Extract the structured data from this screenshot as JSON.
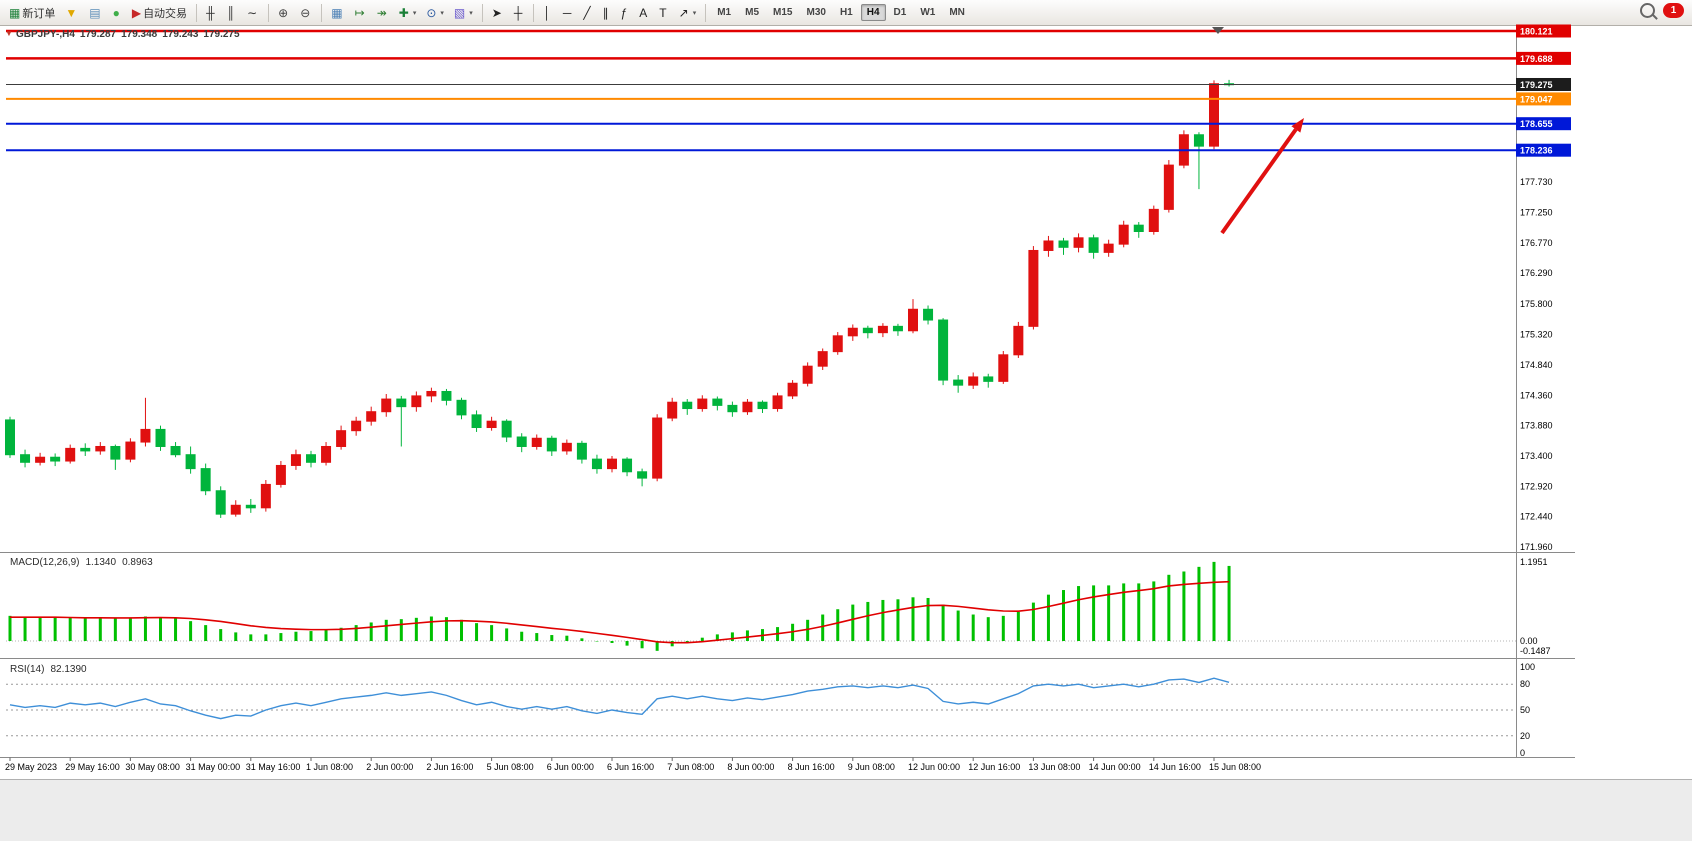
{
  "toolbar": {
    "items": [
      {
        "name": "new-order-button",
        "glyph": "▦",
        "color": "#1a7f37",
        "label": "新订单"
      },
      {
        "name": "metaeditor-icon-button",
        "glyph": "▼",
        "color": "#e0a800"
      },
      {
        "name": "print-icon-button",
        "glyph": "▤",
        "color": "#5b8db8"
      },
      {
        "name": "community-icon-button",
        "glyph": "●",
        "color": "#3fae49"
      },
      {
        "name": "autotrading-button",
        "glyph": "▶",
        "color": "#c62828",
        "label": "自动交易"
      },
      {
        "sep": true
      },
      {
        "name": "bar-chart-button",
        "glyph": "╫",
        "color": "#333333"
      },
      {
        "name": "candlestick-chart-button",
        "glyph": "║",
        "color": "#333333"
      },
      {
        "name": "line-chart-button",
        "glyph": "∼",
        "color": "#333333"
      },
      {
        "sep": true
      },
      {
        "name": "zoom-in-button",
        "glyph": "⊕",
        "color": "#444444"
      },
      {
        "name": "zoom-out-button",
        "glyph": "⊖",
        "color": "#444444"
      },
      {
        "sep": true
      },
      {
        "name": "tile-windows-button",
        "glyph": "▦",
        "color": "#4a7fb5"
      },
      {
        "name": "auto-scroll-button",
        "glyph": "↦",
        "color": "#2e7d32"
      },
      {
        "name": "chart-shift-button",
        "glyph": "↠",
        "color": "#2e7d32"
      },
      {
        "name": "indicators-button",
        "glyph": "✚",
        "color": "#1a7f37",
        "dd": true
      },
      {
        "name": "periods-button",
        "glyph": "⊙",
        "color": "#2c5aa0",
        "dd": true
      },
      {
        "name": "templates-button",
        "glyph": "▧",
        "color": "#6a5acd",
        "dd": true
      },
      {
        "sep": true
      },
      {
        "name": "cursor-button",
        "glyph": "➤",
        "color": "#222222"
      },
      {
        "name": "crosshair-button",
        "glyph": "┼",
        "color": "#222222"
      },
      {
        "sep": true
      },
      {
        "name": "vertical-line-button",
        "glyph": "│",
        "color": "#222222"
      },
      {
        "name": "horizontal-line-button",
        "glyph": "─",
        "color": "#222222"
      },
      {
        "name": "trendline-button",
        "glyph": "╱",
        "color": "#222222"
      },
      {
        "name": "channel-button",
        "glyph": "∥",
        "color": "#222222"
      },
      {
        "name": "fibonacci-button",
        "glyph": "ƒ",
        "color": "#222222"
      },
      {
        "name": "text-button",
        "glyph": "A",
        "color": "#222222"
      },
      {
        "name": "label-button",
        "glyph": "T",
        "color": "#222222"
      },
      {
        "name": "arrows-button",
        "glyph": "↗",
        "color": "#222222",
        "dd": true
      },
      {
        "sep": true
      }
    ],
    "timeframes": [
      {
        "label": "M1"
      },
      {
        "label": "M5"
      },
      {
        "label": "M15"
      },
      {
        "label": "M30"
      },
      {
        "label": "H1"
      },
      {
        "label": "H4",
        "active": true
      },
      {
        "label": "D1"
      },
      {
        "label": "W1"
      },
      {
        "label": "MN"
      }
    ],
    "notification_count": "1"
  },
  "chart": {
    "symbol_period": "GBPJPY-,H4",
    "open": "179.287",
    "high": "179.348",
    "low": "179.243",
    "close": "179.275"
  },
  "chart_data": {
    "type": "candlestick",
    "title": "GBPJPY- H4",
    "up_color": "#e01010",
    "down_color": "#00b43c",
    "x_labels": [
      "29 May 2023",
      "29 May 16:00",
      "30 May 08:00",
      "31 May 00:00",
      "31 May 16:00",
      "1 Jun 08:00",
      "2 Jun 00:00",
      "2 Jun 16:00",
      "5 Jun 08:00",
      "6 Jun 00:00",
      "6 Jun 16:00",
      "7 Jun 08:00",
      "8 Jun 00:00",
      "8 Jun 16:00",
      "9 Jun 08:00",
      "12 Jun 00:00",
      "12 Jun 16:00",
      "13 Jun 08:00",
      "14 Jun 00:00",
      "14 Jun 16:00",
      "15 Jun 08:00"
    ],
    "label_step": 4,
    "y_ticks": [
      "177.730",
      "177.250",
      "176.770",
      "176.290",
      "175.800",
      "175.320",
      "174.840",
      "174.360",
      "173.880",
      "173.400",
      "172.920",
      "172.440",
      "171.960"
    ],
    "price_lines": [
      {
        "label": "180.121",
        "price": 180.121,
        "color": "#e00000",
        "width": 2.5,
        "badge": "#e00000"
      },
      {
        "label": "179.688",
        "price": 179.688,
        "color": "#e00000",
        "width": 2.5,
        "badge": "#e00000"
      },
      {
        "label": "179.275",
        "price": 179.275,
        "color": "#3c3c3c",
        "width": 1,
        "badge": "#1c1c1c"
      },
      {
        "label": "179.047",
        "price": 179.047,
        "color": "#ff8a00",
        "width": 2,
        "badge": "#ff8a00"
      },
      {
        "label": "178.655",
        "price": 178.655,
        "color": "#0018d8",
        "width": 2,
        "badge": "#0018d8"
      },
      {
        "label": "178.236",
        "price": 178.236,
        "color": "#0018d8",
        "width": 2,
        "badge": "#0018d8"
      }
    ],
    "candles": [
      [
        173.97,
        174.02,
        173.37,
        173.42
      ],
      [
        173.42,
        173.5,
        173.22,
        173.3
      ],
      [
        173.3,
        173.45,
        173.25,
        173.38
      ],
      [
        173.38,
        173.44,
        173.24,
        173.32
      ],
      [
        173.32,
        173.58,
        173.28,
        173.52
      ],
      [
        173.52,
        173.6,
        173.4,
        173.48
      ],
      [
        173.48,
        173.62,
        173.42,
        173.55
      ],
      [
        173.55,
        173.58,
        173.18,
        173.35
      ],
      [
        173.35,
        173.68,
        173.3,
        173.62
      ],
      [
        173.62,
        174.32,
        173.55,
        173.82
      ],
      [
        173.82,
        173.88,
        173.48,
        173.55
      ],
      [
        173.55,
        173.62,
        173.38,
        173.42
      ],
      [
        173.42,
        173.55,
        173.12,
        173.2
      ],
      [
        173.2,
        173.28,
        172.78,
        172.85
      ],
      [
        172.85,
        172.92,
        172.42,
        172.48
      ],
      [
        172.48,
        172.7,
        172.44,
        172.62
      ],
      [
        172.62,
        172.72,
        172.5,
        172.58
      ],
      [
        172.58,
        173.02,
        172.52,
        172.95
      ],
      [
        172.95,
        173.32,
        172.9,
        173.25
      ],
      [
        173.25,
        173.5,
        173.18,
        173.42
      ],
      [
        173.42,
        173.48,
        173.22,
        173.3
      ],
      [
        173.3,
        173.62,
        173.25,
        173.55
      ],
      [
        173.55,
        173.88,
        173.5,
        173.8
      ],
      [
        173.8,
        174.02,
        173.72,
        173.95
      ],
      [
        173.95,
        174.18,
        173.88,
        174.1
      ],
      [
        174.1,
        174.38,
        174.02,
        174.3
      ],
      [
        174.3,
        174.35,
        173.55,
        174.18
      ],
      [
        174.18,
        174.42,
        174.1,
        174.35
      ],
      [
        174.35,
        174.48,
        174.25,
        174.42
      ],
      [
        174.42,
        174.46,
        174.2,
        174.28
      ],
      [
        174.28,
        174.32,
        173.98,
        174.05
      ],
      [
        174.05,
        174.12,
        173.78,
        173.85
      ],
      [
        173.85,
        174.02,
        173.8,
        173.95
      ],
      [
        173.95,
        173.98,
        173.62,
        173.7
      ],
      [
        173.7,
        173.76,
        173.46,
        173.55
      ],
      [
        173.55,
        173.74,
        173.5,
        173.68
      ],
      [
        173.68,
        173.72,
        173.4,
        173.48
      ],
      [
        173.48,
        173.66,
        173.42,
        173.6
      ],
      [
        173.6,
        173.64,
        173.28,
        173.35
      ],
      [
        173.35,
        173.42,
        173.12,
        173.2
      ],
      [
        173.2,
        173.4,
        173.14,
        173.35
      ],
      [
        173.35,
        173.38,
        173.08,
        173.15
      ],
      [
        173.15,
        173.2,
        172.92,
        173.05
      ],
      [
        173.05,
        174.06,
        173.0,
        174.0
      ],
      [
        174.0,
        174.32,
        173.95,
        174.25
      ],
      [
        174.25,
        174.3,
        174.05,
        174.15
      ],
      [
        174.15,
        174.36,
        174.1,
        174.3
      ],
      [
        174.3,
        174.34,
        174.12,
        174.2
      ],
      [
        174.2,
        174.26,
        174.02,
        174.1
      ],
      [
        174.1,
        174.3,
        174.05,
        174.25
      ],
      [
        174.25,
        174.28,
        174.08,
        174.15
      ],
      [
        174.15,
        174.4,
        174.1,
        174.35
      ],
      [
        174.35,
        174.6,
        174.3,
        174.55
      ],
      [
        174.55,
        174.88,
        174.5,
        174.82
      ],
      [
        174.82,
        175.1,
        174.76,
        175.05
      ],
      [
        175.05,
        175.36,
        175.0,
        175.3
      ],
      [
        175.3,
        175.48,
        175.22,
        175.42
      ],
      [
        175.42,
        175.46,
        175.26,
        175.35
      ],
      [
        175.35,
        175.5,
        175.28,
        175.45
      ],
      [
        175.45,
        175.49,
        175.3,
        175.38
      ],
      [
        175.38,
        175.88,
        175.34,
        175.72
      ],
      [
        175.72,
        175.78,
        175.48,
        175.55
      ],
      [
        175.55,
        175.58,
        174.52,
        174.6
      ],
      [
        174.6,
        174.68,
        174.4,
        174.52
      ],
      [
        174.52,
        174.72,
        174.46,
        174.65
      ],
      [
        174.65,
        174.7,
        174.48,
        174.58
      ],
      [
        174.58,
        175.06,
        174.54,
        175.0
      ],
      [
        175.0,
        175.52,
        174.95,
        175.45
      ],
      [
        175.45,
        176.72,
        175.4,
        176.65
      ],
      [
        176.65,
        176.88,
        176.55,
        176.8
      ],
      [
        176.8,
        176.85,
        176.58,
        176.7
      ],
      [
        176.7,
        176.92,
        176.62,
        176.85
      ],
      [
        176.85,
        176.9,
        176.52,
        176.62
      ],
      [
        176.62,
        176.82,
        176.55,
        176.75
      ],
      [
        176.75,
        177.12,
        176.7,
        177.05
      ],
      [
        177.05,
        177.1,
        176.85,
        176.95
      ],
      [
        176.95,
        177.36,
        176.9,
        177.3
      ],
      [
        177.3,
        178.08,
        177.25,
        178.0
      ],
      [
        178.0,
        178.55,
        177.95,
        178.48
      ],
      [
        178.48,
        178.52,
        177.62,
        178.3
      ],
      [
        178.3,
        179.34,
        178.25,
        179.287
      ],
      [
        179.287,
        179.348,
        179.243,
        179.275
      ]
    ],
    "indicators": [
      {
        "type": "macd",
        "name": "MACD(12,26,9)",
        "value_main": "1.1340",
        "value_signal": "0.8963",
        "scale_labels": [
          "1.1951",
          "0.00",
          "-0.1487"
        ],
        "hist_color": "#00c000",
        "signal_color": "#e00000",
        "histogram": [
          0.38,
          0.37,
          0.36,
          0.35,
          0.35,
          0.34,
          0.35,
          0.34,
          0.35,
          0.37,
          0.36,
          0.34,
          0.3,
          0.24,
          0.18,
          0.13,
          0.1,
          0.1,
          0.12,
          0.14,
          0.15,
          0.17,
          0.2,
          0.24,
          0.28,
          0.32,
          0.33,
          0.35,
          0.37,
          0.36,
          0.32,
          0.27,
          0.24,
          0.19,
          0.14,
          0.12,
          0.09,
          0.08,
          0.04,
          0.0,
          -0.03,
          -0.07,
          -0.11,
          -0.1487,
          -0.08,
          -0.02,
          0.05,
          0.1,
          0.13,
          0.16,
          0.18,
          0.21,
          0.26,
          0.32,
          0.4,
          0.48,
          0.55,
          0.59,
          0.62,
          0.63,
          0.66,
          0.65,
          0.55,
          0.46,
          0.4,
          0.36,
          0.38,
          0.44,
          0.58,
          0.7,
          0.77,
          0.83,
          0.84,
          0.84,
          0.87,
          0.87,
          0.9,
          1.0,
          1.05,
          1.12,
          1.1951,
          1.134
        ],
        "signal": [
          0.36,
          0.36,
          0.36,
          0.36,
          0.355,
          0.35,
          0.35,
          0.348,
          0.348,
          0.352,
          0.354,
          0.351,
          0.34,
          0.32,
          0.295,
          0.263,
          0.23,
          0.205,
          0.188,
          0.178,
          0.172,
          0.172,
          0.177,
          0.19,
          0.208,
          0.23,
          0.25,
          0.27,
          0.29,
          0.304,
          0.307,
          0.3,
          0.288,
          0.268,
          0.243,
          0.218,
          0.192,
          0.17,
          0.144,
          0.115,
          0.086,
          0.055,
          0.022,
          -0.012,
          -0.026,
          -0.025,
          -0.01,
          0.012,
          0.036,
          0.06,
          0.084,
          0.11,
          0.14,
          0.176,
          0.221,
          0.273,
          0.328,
          0.381,
          0.429,
          0.469,
          0.507,
          0.536,
          0.539,
          0.523,
          0.498,
          0.471,
          0.453,
          0.45,
          0.476,
          0.521,
          0.571,
          0.623,
          0.666,
          0.701,
          0.735,
          0.762,
          0.79,
          0.832,
          0.855,
          0.872,
          0.886,
          0.8963
        ]
      },
      {
        "type": "rsi",
        "name": "RSI(14)",
        "value": "82.1390",
        "levels": [
          80,
          50,
          20
        ],
        "scale_labels": [
          "100",
          "80",
          "50",
          "20",
          "0"
        ],
        "line_color": "#3e8fd8",
        "values": [
          56,
          53,
          55,
          53,
          58,
          56,
          58,
          54,
          59,
          63,
          57,
          55,
          49,
          44,
          40,
          44,
          43,
          50,
          55,
          58,
          55,
          59,
          63,
          65,
          67,
          70,
          67,
          69,
          71,
          67,
          61,
          56,
          59,
          54,
          51,
          54,
          51,
          54,
          49,
          46,
          50,
          47,
          45,
          63,
          66,
          63,
          66,
          63,
          61,
          64,
          62,
          65,
          68,
          72,
          74,
          77,
          78,
          76,
          78,
          76,
          79,
          75,
          60,
          57,
          59,
          57,
          63,
          69,
          78,
          80,
          78,
          80,
          76,
          78,
          80,
          77,
          80,
          85,
          86,
          82,
          87,
          82.139
        ],
        "current_value": 82.139
      }
    ],
    "annotation_arrow": {
      "from": [
        1222,
        233
      ],
      "to": [
        1304,
        118
      ],
      "color": "#e01010"
    }
  }
}
